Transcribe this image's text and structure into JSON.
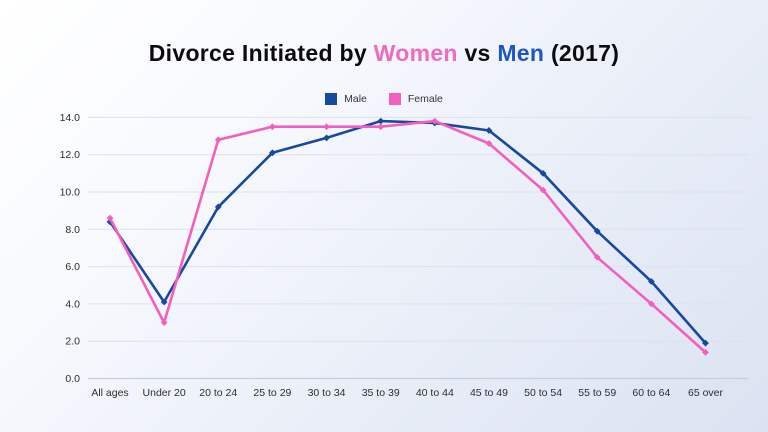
{
  "title": {
    "prefix": "Divorce Initiated by ",
    "women": "Women",
    "vs": " vs ",
    "men": "Men",
    "suffix": " (2017)"
  },
  "colors": {
    "male": "#17499e",
    "female": "#f35fbe",
    "title_women": "#f06ac2",
    "title_men": "#1e56c8",
    "gridline": "#dde1ec",
    "axis_line": "#c7cdda",
    "tick_text": "#2b2e36"
  },
  "legend": {
    "items": [
      {
        "label": "Male",
        "color": "#17499e"
      },
      {
        "label": "Female",
        "color": "#f35fbe"
      }
    ]
  },
  "chart_data": {
    "type": "line",
    "title": "Divorce Initiated by Women vs Men (2017)",
    "categories": [
      "All ages",
      "Under 20",
      "20 to 24",
      "25 to 29",
      "30 to 34",
      "35 to 39",
      "40 to 44",
      "45 to 49",
      "50 to 54",
      "55 to 59",
      "60 to 64",
      "65 over"
    ],
    "series": [
      {
        "name": "Male",
        "color": "#17499e",
        "values": [
          8.4,
          4.1,
          9.2,
          12.1,
          12.9,
          13.8,
          13.7,
          13.3,
          11.0,
          7.9,
          5.2,
          1.9
        ]
      },
      {
        "name": "Female",
        "color": "#f35fbe",
        "values": [
          8.6,
          3.0,
          12.8,
          13.5,
          13.5,
          13.5,
          13.8,
          12.6,
          10.1,
          6.5,
          4.0,
          1.4
        ]
      }
    ],
    "xlabel": "",
    "ylabel": "",
    "ylim": [
      0,
      14
    ],
    "ytick_step": 2,
    "ytick_labels": [
      "0.0",
      "2.0",
      "4.0",
      "6.0",
      "8.0",
      "10.0",
      "12.0",
      "14.0"
    ],
    "grid": true,
    "legend_position": "top-center"
  }
}
